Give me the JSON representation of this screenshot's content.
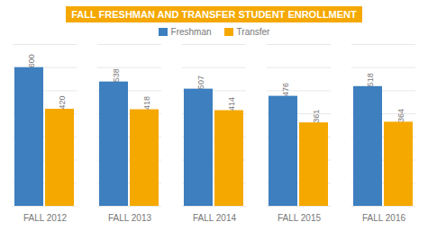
{
  "chart_data": {
    "type": "bar",
    "title": "FALL FRESHMAN AND TRANSFER STUDENT ENROLLMENT",
    "categories": [
      "FALL 2012",
      "FALL 2013",
      "FALL 2014",
      "FALL 2015",
      "FALL 2016"
    ],
    "series": [
      {
        "name": "Freshman",
        "color": "#3D7FBF",
        "values": [
          600,
          538,
          507,
          476,
          518
        ]
      },
      {
        "name": "Transfer",
        "color": "#F5A800",
        "values": [
          420,
          418,
          414,
          361,
          364
        ]
      }
    ],
    "ylim": [
      0,
      700
    ],
    "yticks": [
      0,
      100,
      200,
      300,
      400,
      500,
      600,
      700
    ],
    "grid": true,
    "legend": "top",
    "data_labels": true,
    "tick_labels": "x"
  }
}
